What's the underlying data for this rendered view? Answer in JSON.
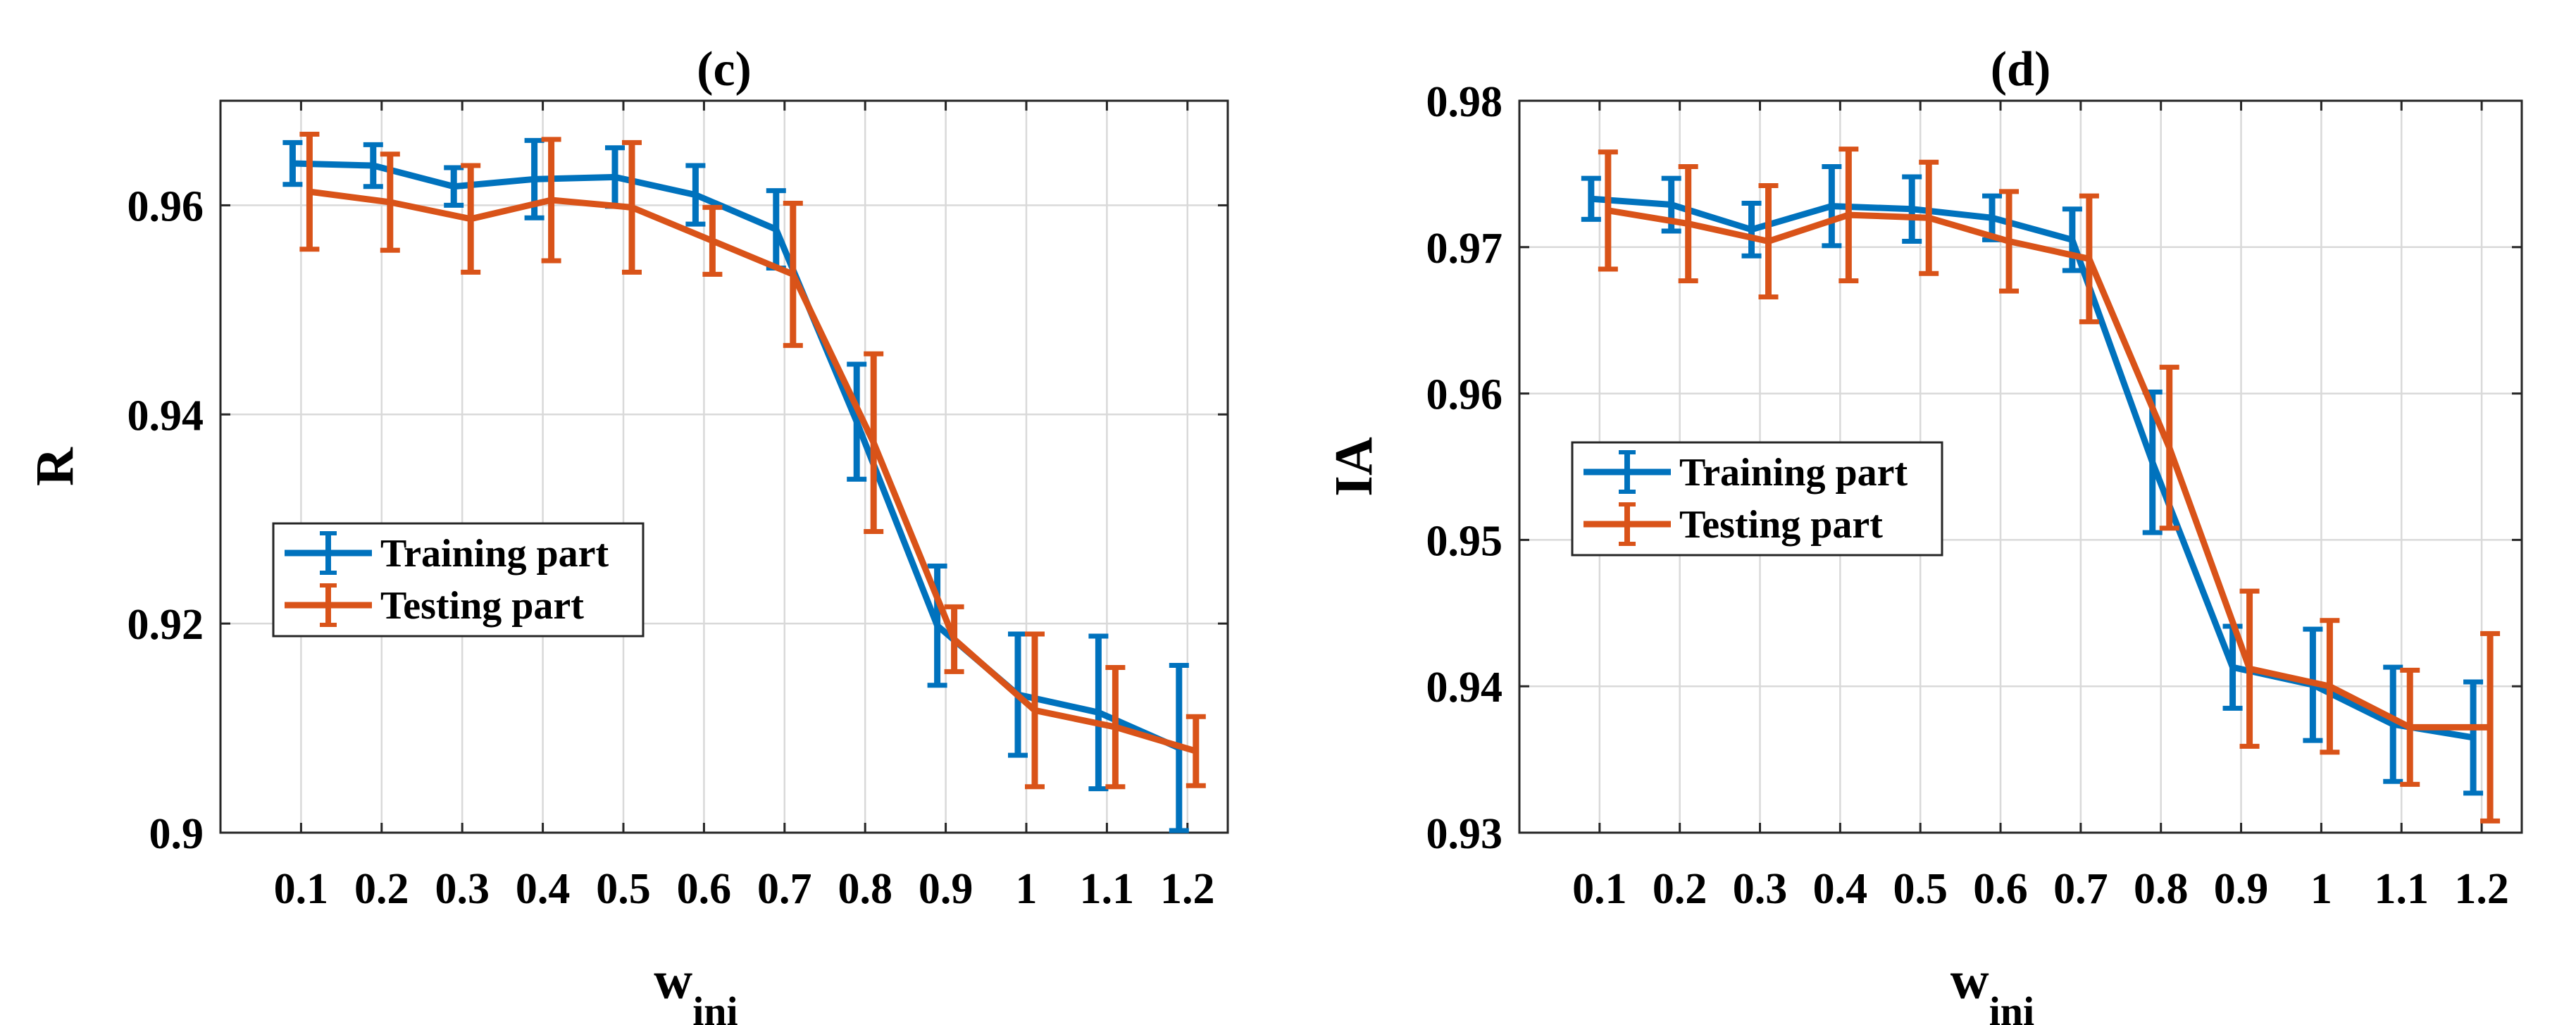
{
  "chart_data": [
    {
      "type": "line",
      "panel": "c",
      "title": "(c)",
      "ylabel": "R",
      "xlabel_main": "w",
      "xlabel_sub": "ini",
      "ylim": [
        0.9,
        0.97
      ],
      "yticks": [
        0.9,
        0.92,
        0.94,
        0.96
      ],
      "ytick_labels": [
        "0.9",
        "0.92",
        "0.94",
        "0.96"
      ],
      "x": [
        0.1,
        0.2,
        0.3,
        0.4,
        0.5,
        0.6,
        0.7,
        0.8,
        0.9,
        1.0,
        1.1,
        1.2
      ],
      "xtick_labels": [
        "0.1",
        "0.2",
        "0.3",
        "0.4",
        "0.5",
        "0.6",
        "0.7",
        "0.8",
        "0.9",
        "1",
        "1.1",
        "1.2"
      ],
      "grid": true,
      "legend_position": "center-left",
      "series": [
        {
          "name": "Training part",
          "color": "#0072BD",
          "values": [
            0.964,
            0.9638,
            0.9618,
            0.9625,
            0.9627,
            0.961,
            0.9577,
            0.9393,
            0.9198,
            0.9132,
            0.9115,
            0.9081
          ],
          "errors": [
            0.002,
            0.002,
            0.0018,
            0.0037,
            0.0028,
            0.0028,
            0.0037,
            0.0055,
            0.0057,
            0.0058,
            0.0073,
            0.0079
          ]
        },
        {
          "name": "Testing part",
          "color": "#D95319",
          "values": [
            0.9613,
            0.9603,
            0.9587,
            0.9605,
            0.9598,
            0.9566,
            0.9534,
            0.9373,
            0.9185,
            0.9117,
            0.9101,
            0.9078
          ],
          "errors": [
            0.0055,
            0.0046,
            0.0051,
            0.0058,
            0.0062,
            0.0032,
            0.0068,
            0.0085,
            0.0031,
            0.0073,
            0.0057,
            0.0033
          ]
        }
      ]
    },
    {
      "type": "line",
      "panel": "d",
      "title": "(d)",
      "ylabel": "IA",
      "xlabel_main": "w",
      "xlabel_sub": "ini",
      "ylim": [
        0.93,
        0.98
      ],
      "yticks": [
        0.93,
        0.94,
        0.95,
        0.96,
        0.97,
        0.98
      ],
      "ytick_labels": [
        "0.93",
        "0.94",
        "0.95",
        "0.96",
        "0.97",
        "0.98"
      ],
      "x": [
        0.1,
        0.2,
        0.3,
        0.4,
        0.5,
        0.6,
        0.7,
        0.8,
        0.9,
        1.0,
        1.1,
        1.2
      ],
      "xtick_labels": [
        "0.1",
        "0.2",
        "0.3",
        "0.4",
        "0.5",
        "0.6",
        "0.7",
        "0.8",
        "0.9",
        "1",
        "1.1",
        "1.2"
      ],
      "grid": true,
      "legend_position": "center-left",
      "series": [
        {
          "name": "Training part",
          "color": "#0072BD",
          "values": [
            0.9733,
            0.9729,
            0.9712,
            0.9728,
            0.9726,
            0.972,
            0.9705,
            0.9553,
            0.9413,
            0.9401,
            0.9374,
            0.9365
          ],
          "errors": [
            0.0014,
            0.0018,
            0.0018,
            0.0027,
            0.0022,
            0.0015,
            0.0021,
            0.0048,
            0.0028,
            0.0038,
            0.0039,
            0.0038
          ]
        },
        {
          "name": "Testing part",
          "color": "#D95319",
          "values": [
            0.9725,
            0.9716,
            0.9704,
            0.9722,
            0.972,
            0.9704,
            0.9692,
            0.9563,
            0.9412,
            0.94,
            0.9372,
            0.9372
          ],
          "errors": [
            0.004,
            0.0039,
            0.0038,
            0.0045,
            0.0038,
            0.0034,
            0.0043,
            0.0055,
            0.0053,
            0.0045,
            0.0039,
            0.0064
          ]
        }
      ]
    }
  ]
}
